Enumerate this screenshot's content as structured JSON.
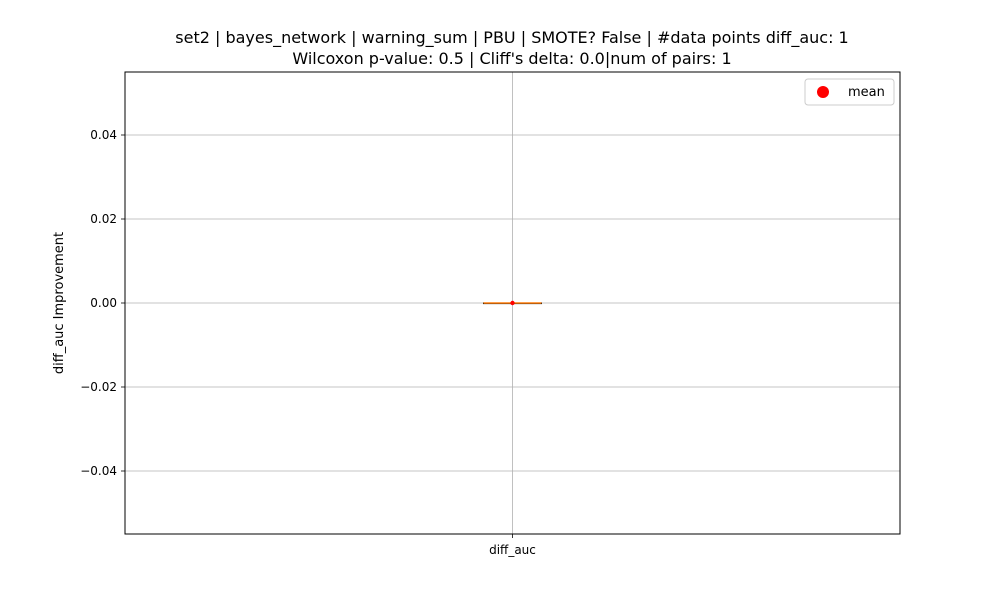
{
  "chart_data": {
    "type": "box",
    "title_line1": "set2 | bayes_network | warning_sum | PBU | SMOTE? False | #data points diff_auc: 1",
    "title_line2": "Wilcoxon p-value: 0.5 | Cliff's delta: 0.0|num of pairs: 1",
    "xlabel": "",
    "ylabel": "diff_auc Improvement",
    "categories": [
      "diff_auc"
    ],
    "ylim": [
      -0.055,
      0.055
    ],
    "y_ticks": [
      -0.04,
      -0.02,
      0.0,
      0.02,
      0.04
    ],
    "y_tick_labels": [
      "−0.04",
      "−0.02",
      "0.00",
      "0.02",
      "0.04"
    ],
    "grid": true,
    "legend": {
      "position": "top-right",
      "label": "mean"
    },
    "series": [
      {
        "category": "diff_auc",
        "min": 0.0,
        "q1": 0.0,
        "median": 0.0,
        "q3": 0.0,
        "max": 0.0,
        "mean": 0.0
      }
    ],
    "colors": {
      "median": "#ff7f0e",
      "mean": "#ff0000",
      "grid": "#b0b0b0",
      "axes": "#000000"
    }
  }
}
